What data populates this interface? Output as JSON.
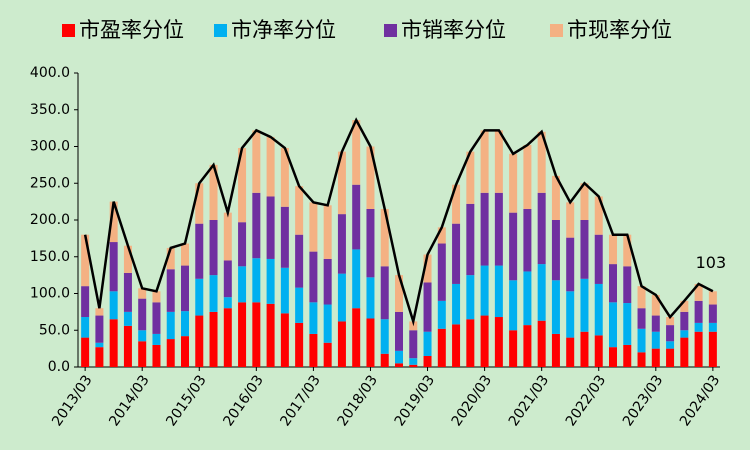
{
  "chart_data": {
    "type": "bar",
    "stacked": true,
    "categories": [
      "2013/03",
      null,
      null,
      null,
      "2014/03",
      null,
      null,
      null,
      "2015/03",
      null,
      null,
      null,
      "2016/03",
      null,
      null,
      null,
      "2017/03",
      null,
      null,
      null,
      "2018/03",
      null,
      null,
      null,
      "2019/03",
      null,
      null,
      null,
      "2020/03",
      null,
      null,
      null,
      "2021/03",
      null,
      null,
      null,
      "2022/03",
      null,
      null,
      null,
      "2023/03",
      null,
      null,
      null,
      "2024/03"
    ],
    "series": [
      {
        "name": "市盈率分位",
        "color": "#ff0000",
        "values": [
          40,
          27,
          65,
          56,
          35,
          30,
          38,
          42,
          70,
          75,
          80,
          88,
          88,
          86,
          73,
          60,
          45,
          33,
          62,
          80,
          66,
          18,
          5,
          3,
          15,
          52,
          58,
          65,
          70,
          68,
          50,
          57,
          63,
          45,
          40,
          48,
          43,
          27,
          30,
          20,
          25,
          25,
          40,
          48,
          48
        ]
      },
      {
        "name": "市净率分位",
        "color": "#00b0f0",
        "values": [
          28,
          6,
          38,
          19,
          15,
          15,
          37,
          34,
          50,
          50,
          15,
          49,
          60,
          61,
          62,
          48,
          43,
          52,
          65,
          80,
          56,
          47,
          17,
          9,
          33,
          38,
          55,
          60,
          68,
          70,
          68,
          73,
          77,
          73,
          63,
          72,
          70,
          61,
          57,
          32,
          23,
          10,
          10,
          12,
          12
        ]
      },
      {
        "name": "市销率分位",
        "color": "#7030a0",
        "values": [
          42,
          37,
          67,
          53,
          43,
          43,
          58,
          62,
          75,
          75,
          50,
          60,
          89,
          85,
          83,
          72,
          69,
          62,
          81,
          88,
          93,
          72,
          53,
          38,
          67,
          78,
          82,
          97,
          99,
          99,
          92,
          85,
          97,
          82,
          73,
          80,
          67,
          52,
          50,
          28,
          22,
          22,
          25,
          30,
          25
        ]
      },
      {
        "name": "市现率分位",
        "color": "#f4b183",
        "values": [
          70,
          10,
          55,
          37,
          14,
          15,
          29,
          30,
          55,
          75,
          65,
          101,
          85,
          81,
          80,
          66,
          67,
          73,
          85,
          88,
          85,
          78,
          50,
          12,
          38,
          22,
          53,
          71,
          85,
          85,
          80,
          87,
          83,
          60,
          48,
          50,
          52,
          40,
          43,
          30,
          28,
          11,
          15,
          23,
          18
        ]
      }
    ],
    "line": {
      "color": "#000000",
      "values": [
        180,
        80,
        225,
        165,
        107,
        103,
        162,
        168,
        250,
        275,
        210,
        298,
        322,
        313,
        298,
        246,
        224,
        220,
        293,
        336,
        300,
        215,
        125,
        62,
        153,
        190,
        248,
        293,
        322,
        322,
        290,
        302,
        320,
        260,
        224,
        250,
        232,
        180,
        180,
        110,
        98,
        68,
        90,
        113,
        103
      ],
      "value_labels": [
        null,
        null,
        null,
        null,
        null,
        null,
        null,
        null,
        null,
        null,
        null,
        null,
        null,
        null,
        null,
        null,
        null,
        null,
        null,
        null,
        null,
        null,
        null,
        null,
        null,
        null,
        null,
        null,
        null,
        null,
        null,
        null,
        null,
        null,
        null,
        null,
        null,
        null,
        null,
        null,
        null,
        null,
        null,
        null,
        "103"
      ]
    },
    "ylim": [
      0,
      400
    ],
    "yticks": [
      {
        "value": 0,
        "label": "0.0"
      },
      {
        "value": 50,
        "label": "50.0"
      },
      {
        "value": 100,
        "label": "100.0"
      },
      {
        "value": 150,
        "label": "150.0"
      },
      {
        "value": 200,
        "label": "200.0"
      },
      {
        "value": 250,
        "label": "250.0"
      },
      {
        "value": 300,
        "label": "300.0"
      },
      {
        "value": 350,
        "label": "350.0"
      },
      {
        "value": 400,
        "label": "400.0"
      }
    ],
    "grid": false,
    "legend": "top"
  }
}
